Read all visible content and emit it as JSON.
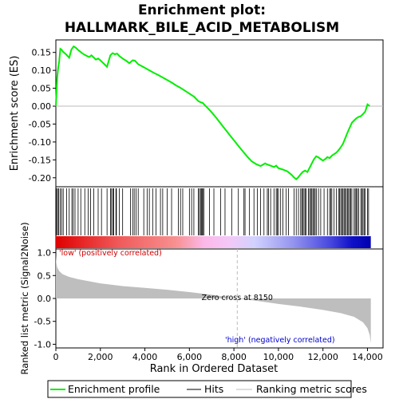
{
  "chart_data": [
    {
      "type": "line",
      "title_line1": "Enrichment plot:",
      "title_line2": "HALLMARK_BILE_ACID_METABOLISM",
      "ylabel": "Enrichment score (ES)",
      "ylim": [
        -0.225,
        0.185
      ],
      "xlim": [
        0,
        14700
      ],
      "yticks": [
        "0.15",
        "0.10",
        "0.05",
        "0.00",
        "-0.05",
        "-0.10",
        "-0.15",
        "-0.20"
      ],
      "ytick_values": [
        0.15,
        0.1,
        0.05,
        0.0,
        -0.05,
        -0.1,
        -0.15,
        -0.2
      ],
      "color": "#00ee00",
      "series": [
        {
          "name": "Enrichment profile",
          "x": [
            0,
            30,
            60,
            100,
            150,
            200,
            250,
            320,
            450,
            600,
            700,
            800,
            900,
            1000,
            1100,
            1200,
            1300,
            1400,
            1500,
            1600,
            1700,
            1800,
            1900,
            2000,
            2100,
            2200,
            2300,
            2450,
            2550,
            2650,
            2750,
            2850,
            3000,
            3150,
            3300,
            3450,
            3550,
            3700,
            3850,
            4000,
            4200,
            4400,
            4600,
            4800,
            5000,
            5200,
            5400,
            5600,
            5800,
            6000,
            6200,
            6400,
            6500,
            6600,
            6700,
            6800,
            7000,
            7200,
            7400,
            7600,
            7800,
            8000,
            8200,
            8400,
            8600,
            8800,
            9000,
            9200,
            9400,
            9500,
            9600,
            9800,
            9900,
            10000,
            10200,
            10400,
            10600,
            10700,
            10800,
            10900,
            11000,
            11100,
            11200,
            11300,
            11400,
            11500,
            11600,
            11700,
            11800,
            11900,
            12000,
            12100,
            12200,
            12300,
            12400,
            12500,
            12600,
            12700,
            12800,
            12900,
            13000,
            13100,
            13200,
            13300,
            13400,
            13500,
            13600,
            13700,
            13800,
            13900,
            14000,
            14100
          ],
          "y": [
            0.0,
            0.04,
            0.08,
            0.105,
            0.125,
            0.16,
            0.158,
            0.152,
            0.145,
            0.135,
            0.158,
            0.167,
            0.163,
            0.157,
            0.152,
            0.147,
            0.143,
            0.14,
            0.137,
            0.142,
            0.136,
            0.13,
            0.133,
            0.128,
            0.122,
            0.116,
            0.11,
            0.142,
            0.148,
            0.145,
            0.147,
            0.14,
            0.133,
            0.127,
            0.12,
            0.128,
            0.127,
            0.117,
            0.112,
            0.107,
            0.1,
            0.093,
            0.087,
            0.08,
            0.073,
            0.066,
            0.058,
            0.051,
            0.043,
            0.035,
            0.027,
            0.014,
            0.011,
            0.009,
            0.002,
            -0.004,
            -0.017,
            -0.032,
            -0.048,
            -0.064,
            -0.08,
            -0.095,
            -0.111,
            -0.126,
            -0.141,
            -0.154,
            -0.162,
            -0.167,
            -0.16,
            -0.163,
            -0.165,
            -0.17,
            -0.166,
            -0.173,
            -0.177,
            -0.182,
            -0.192,
            -0.199,
            -0.204,
            -0.198,
            -0.19,
            -0.183,
            -0.18,
            -0.184,
            -0.172,
            -0.16,
            -0.148,
            -0.14,
            -0.143,
            -0.148,
            -0.152,
            -0.148,
            -0.142,
            -0.145,
            -0.138,
            -0.134,
            -0.13,
            -0.123,
            -0.115,
            -0.105,
            -0.09,
            -0.074,
            -0.06,
            -0.046,
            -0.04,
            -0.034,
            -0.03,
            -0.028,
            -0.022,
            -0.015,
            0.005,
            0.0
          ]
        }
      ]
    },
    {
      "type": "heatmap",
      "name": "Hits",
      "hit_positions": [
        30,
        80,
        130,
        200,
        260,
        330,
        480,
        600,
        720,
        780,
        860,
        1000,
        1120,
        1300,
        1450,
        1560,
        1700,
        1900,
        2050,
        2300,
        2460,
        2500,
        2560,
        2600,
        2700,
        2720,
        2850,
        3000,
        3350,
        3450,
        3520,
        3600,
        3700,
        3950,
        4100,
        4200,
        4350,
        4500,
        4700,
        4800,
        5000,
        5200,
        5500,
        5600,
        5700,
        6000,
        6100,
        6200,
        6400,
        6450,
        6500,
        6550,
        6580,
        6600,
        6650,
        6900,
        7100,
        7400,
        7600,
        7900,
        8200,
        8450,
        8500,
        8700,
        8900,
        9050,
        9200,
        9350,
        9500,
        9550,
        9650,
        9800,
        9900,
        9950,
        10000,
        10100,
        10200,
        10350,
        10450,
        10700,
        10800,
        10900,
        11000,
        11050,
        11100,
        11150,
        11200,
        11250,
        11350,
        11400,
        11450,
        11500,
        11550,
        11600,
        11650,
        11700,
        11800,
        11900,
        12050,
        12200,
        12300,
        12350,
        12400,
        12500,
        12600,
        12700,
        12750,
        12800,
        12850,
        12900,
        12950,
        13000,
        13050,
        13100,
        13150,
        13200,
        13250,
        13300,
        13400,
        13450,
        13500,
        13550,
        13600,
        13700,
        13750,
        13800,
        13850,
        13900,
        14000,
        14050
      ]
    },
    {
      "type": "area",
      "ylabel": "Ranked list metric (Signal2Noise)",
      "xlabel": "Rank in Ordered Dataset",
      "xlim": [
        0,
        14700
      ],
      "ylim": [
        -1.08,
        1.08
      ],
      "xticks": [
        "0",
        "2,000",
        "4,000",
        "6,000",
        "8,000",
        "10,000",
        "12,000",
        "14,000"
      ],
      "xtick_values": [
        0,
        2000,
        4000,
        6000,
        8000,
        10000,
        12000,
        14000
      ],
      "yticks": [
        "1.0",
        "0.5",
        "0.0",
        "-0.5",
        "-1.0"
      ],
      "ytick_values": [
        1.0,
        0.5,
        0.0,
        -0.5,
        -1.0
      ],
      "color": "#bebebe",
      "series": [
        {
          "name": "Ranking metric scores",
          "x": [
            0,
            20,
            60,
            150,
            300,
            600,
            1000,
            2000,
            3000,
            4000,
            5000,
            6000,
            7000,
            8150,
            9000,
            10000,
            11000,
            12000,
            12800,
            13400,
            13800,
            14000,
            14100,
            14150
          ],
          "y": [
            0.95,
            0.78,
            0.68,
            0.6,
            0.53,
            0.47,
            0.42,
            0.33,
            0.27,
            0.23,
            0.19,
            0.14,
            0.08,
            0.0,
            -0.05,
            -0.12,
            -0.18,
            -0.25,
            -0.32,
            -0.4,
            -0.52,
            -0.65,
            -0.8,
            -0.98
          ]
        }
      ],
      "annotations": {
        "low": "'low' (positively correlated)",
        "high": "'high' (negatively correlated)",
        "zero_cross": "Zero cross at 8150",
        "zero_cross_x": 8150
      }
    }
  ],
  "legend": {
    "profile": "Enrichment profile",
    "hits": "Hits",
    "metric": "Ranking metric scores"
  }
}
